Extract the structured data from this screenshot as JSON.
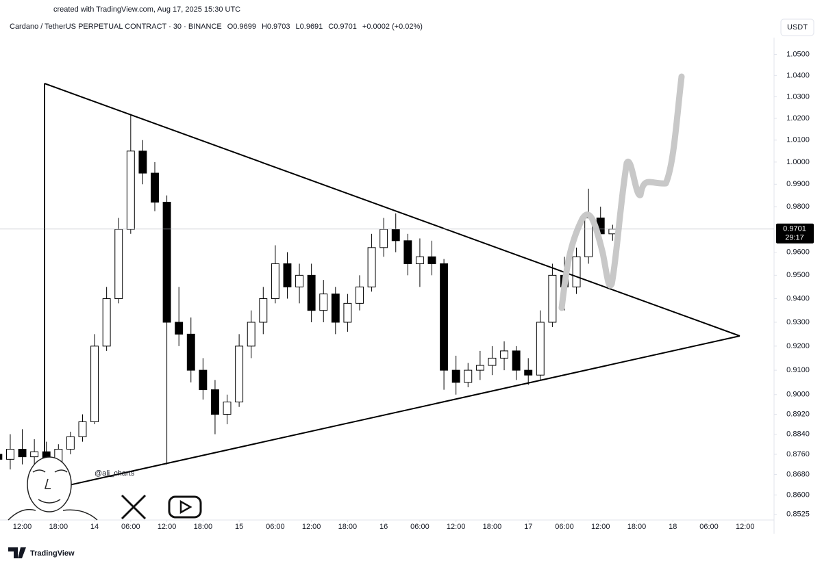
{
  "chart_data": {
    "type": "candlestick",
    "caption": "created with TradingView.com, Aug 17, 2025 15:30 UTC",
    "symbol": "Cardano / TetherUS PERPETUAL CONTRACT · 30 · BINANCE",
    "ohlc_labels": [
      "O0.9699",
      "H0.9703",
      "L0.9691",
      "C0.9701"
    ],
    "change": "+0.0002 (+0.02%)",
    "currency": "USDT",
    "last_price": 0.9701,
    "countdown": "29:17",
    "watermark": "@ali_charts",
    "brand": "TradingView",
    "log_scale": true,
    "grid": false,
    "up_color": "#ffffff",
    "down_color": "#000000",
    "outline_color": "#000000",
    "x": [
      -4,
      -2,
      0,
      2,
      4,
      6,
      8,
      10,
      12,
      14,
      16,
      18,
      20,
      22,
      24,
      26,
      28,
      30,
      32,
      34,
      36,
      38,
      40,
      42,
      44,
      46,
      48,
      50,
      52,
      54,
      56,
      58,
      60,
      62,
      64,
      66,
      68,
      70,
      72,
      74,
      76,
      78,
      80,
      82,
      84,
      86,
      88,
      90,
      92,
      94,
      96,
      98
    ],
    "open": [
      0.876,
      0.874,
      0.878,
      0.875,
      0.877,
      0.873,
      0.878,
      0.883,
      0.889,
      0.92,
      0.94,
      0.97,
      1.005,
      0.995,
      0.982,
      0.93,
      0.925,
      0.91,
      0.902,
      0.892,
      0.897,
      0.92,
      0.93,
      0.94,
      0.955,
      0.945,
      0.95,
      0.935,
      0.942,
      0.93,
      0.938,
      0.945,
      0.962,
      0.97,
      0.965,
      0.955,
      0.958,
      0.955,
      0.91,
      0.905,
      0.91,
      0.912,
      0.915,
      0.918,
      0.91,
      0.908,
      0.93,
      0.95,
      0.945,
      0.958,
      0.975,
      0.968
    ],
    "high": [
      0.88,
      0.884,
      0.886,
      0.882,
      0.881,
      0.88,
      0.885,
      0.892,
      0.925,
      0.945,
      0.975,
      1.022,
      1.01,
      1.0,
      0.985,
      0.945,
      0.932,
      0.915,
      0.906,
      0.9,
      0.925,
      0.935,
      0.945,
      0.963,
      0.96,
      0.955,
      0.955,
      0.948,
      0.945,
      0.942,
      0.95,
      0.968,
      0.975,
      0.977,
      0.968,
      0.966,
      0.965,
      0.957,
      0.916,
      0.913,
      0.918,
      0.92,
      0.922,
      0.92,
      0.915,
      0.935,
      0.955,
      0.958,
      0.962,
      0.988,
      0.98,
      0.972
    ],
    "low": [
      0.872,
      0.87,
      0.872,
      0.866,
      0.87,
      0.871,
      0.876,
      0.881,
      0.888,
      0.918,
      0.938,
      0.968,
      0.99,
      0.978,
      0.872,
      0.92,
      0.905,
      0.898,
      0.884,
      0.888,
      0.895,
      0.915,
      0.925,
      0.938,
      0.94,
      0.938,
      0.93,
      0.93,
      0.925,
      0.926,
      0.935,
      0.943,
      0.958,
      0.96,
      0.95,
      0.945,
      0.95,
      0.902,
      0.9,
      0.903,
      0.906,
      0.908,
      0.91,
      0.906,
      0.904,
      0.906,
      0.928,
      0.935,
      0.942,
      0.955,
      0.962,
      0.965
    ],
    "close": [
      0.874,
      0.878,
      0.875,
      0.877,
      0.873,
      0.878,
      0.883,
      0.889,
      0.92,
      0.94,
      0.97,
      1.005,
      0.995,
      0.982,
      0.93,
      0.925,
      0.91,
      0.902,
      0.892,
      0.897,
      0.92,
      0.93,
      0.94,
      0.955,
      0.945,
      0.95,
      0.935,
      0.942,
      0.93,
      0.938,
      0.945,
      0.962,
      0.97,
      0.965,
      0.955,
      0.958,
      0.955,
      0.91,
      0.905,
      0.91,
      0.912,
      0.915,
      0.918,
      0.91,
      0.908,
      0.93,
      0.95,
      0.945,
      0.958,
      0.975,
      0.968,
      0.9701
    ],
    "xlim": [
      -3.7,
      124.8
    ],
    "xticks": [
      {
        "value": 0,
        "label": "12:00"
      },
      {
        "value": 6,
        "label": "18:00"
      },
      {
        "value": 12,
        "label": "14"
      },
      {
        "value": 18,
        "label": "06:00"
      },
      {
        "value": 24,
        "label": "12:00"
      },
      {
        "value": 30,
        "label": "18:00"
      },
      {
        "value": 36,
        "label": "15"
      },
      {
        "value": 42,
        "label": "06:00"
      },
      {
        "value": 48,
        "label": "12:00"
      },
      {
        "value": 54,
        "label": "18:00"
      },
      {
        "value": 60,
        "label": "16"
      },
      {
        "value": 66,
        "label": "06:00"
      },
      {
        "value": 72,
        "label": "12:00"
      },
      {
        "value": 78,
        "label": "18:00"
      },
      {
        "value": 84,
        "label": "17"
      },
      {
        "value": 90,
        "label": "06:00"
      },
      {
        "value": 96,
        "label": "12:00"
      },
      {
        "value": 102,
        "label": "18:00"
      },
      {
        "value": 108,
        "label": "18"
      },
      {
        "value": 114,
        "label": "06:00"
      },
      {
        "value": 120,
        "label": "12:00"
      }
    ],
    "ylim": [
      0.8503,
      1.058
    ],
    "yticks": [
      {
        "value": 1.05,
        "label": "1.0500"
      },
      {
        "value": 1.04,
        "label": "1.0400"
      },
      {
        "value": 1.03,
        "label": "1.0300"
      },
      {
        "value": 1.02,
        "label": "1.0200"
      },
      {
        "value": 1.01,
        "label": "1.0100"
      },
      {
        "value": 1.0,
        "label": "1.0000"
      },
      {
        "value": 0.99,
        "label": "0.9900"
      },
      {
        "value": 0.98,
        "label": "0.9800"
      },
      {
        "value": 0.96,
        "label": "0.9600"
      },
      {
        "value": 0.95,
        "label": "0.9500"
      },
      {
        "value": 0.94,
        "label": "0.9400"
      },
      {
        "value": 0.93,
        "label": "0.9300"
      },
      {
        "value": 0.92,
        "label": "0.9200"
      },
      {
        "value": 0.91,
        "label": "0.9100"
      },
      {
        "value": 0.9,
        "label": "0.9000"
      },
      {
        "value": 0.892,
        "label": "0.8920"
      },
      {
        "value": 0.884,
        "label": "0.8840"
      },
      {
        "value": 0.876,
        "label": "0.8760"
      },
      {
        "value": 0.868,
        "label": "0.8680"
      },
      {
        "value": 0.86,
        "label": "0.8600"
      },
      {
        "value": 0.8525,
        "label": "0.8525"
      }
    ]
  }
}
